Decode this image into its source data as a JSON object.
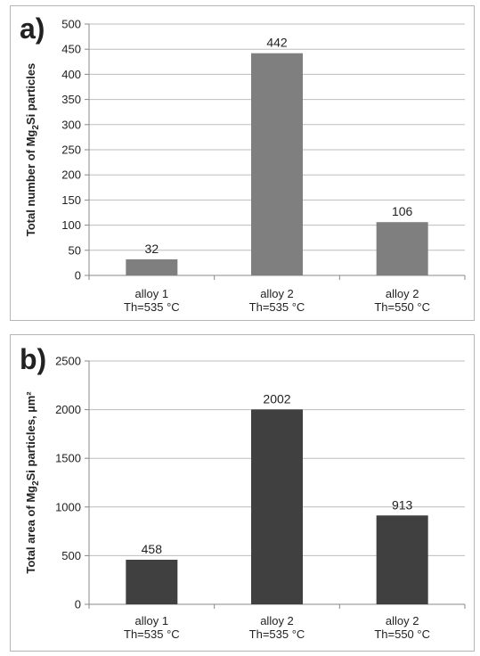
{
  "chart_data": [
    {
      "type": "bar",
      "panel_letter": "a)",
      "categories": [
        [
          "alloy 1",
          "Th=535 °C"
        ],
        [
          "alloy 2",
          "Th=535 °C"
        ],
        [
          "alloy 2",
          "Th=550 °C"
        ]
      ],
      "values": [
        32,
        442,
        106
      ],
      "data_labels": [
        "32",
        "442",
        "106"
      ],
      "ylabel": {
        "prefix": "Total number of Mg",
        "sub": "2",
        "suffix": "Si particles"
      },
      "ylim": [
        0,
        500
      ],
      "yticks": [
        0,
        50,
        100,
        150,
        200,
        250,
        300,
        350,
        400,
        450,
        500
      ],
      "grid": true,
      "bar_color": "#7f7f7f",
      "legend": "none"
    },
    {
      "type": "bar",
      "panel_letter": "b)",
      "categories": [
        [
          "alloy 1",
          "Th=535 °C"
        ],
        [
          "alloy 2",
          "Th=535 °C"
        ],
        [
          "alloy 2",
          "Th=550 °C"
        ]
      ],
      "values": [
        458,
        2002,
        913
      ],
      "data_labels": [
        "458",
        "2002",
        "913"
      ],
      "ylabel": {
        "prefix": "Total area of Mg",
        "sub": "2",
        "suffix": "Si  particles, µm²"
      },
      "ylim": [
        0,
        2500
      ],
      "yticks": [
        0,
        500,
        1000,
        1500,
        2000,
        2500
      ],
      "grid": true,
      "bar_color": "#404040",
      "legend": "none"
    }
  ]
}
